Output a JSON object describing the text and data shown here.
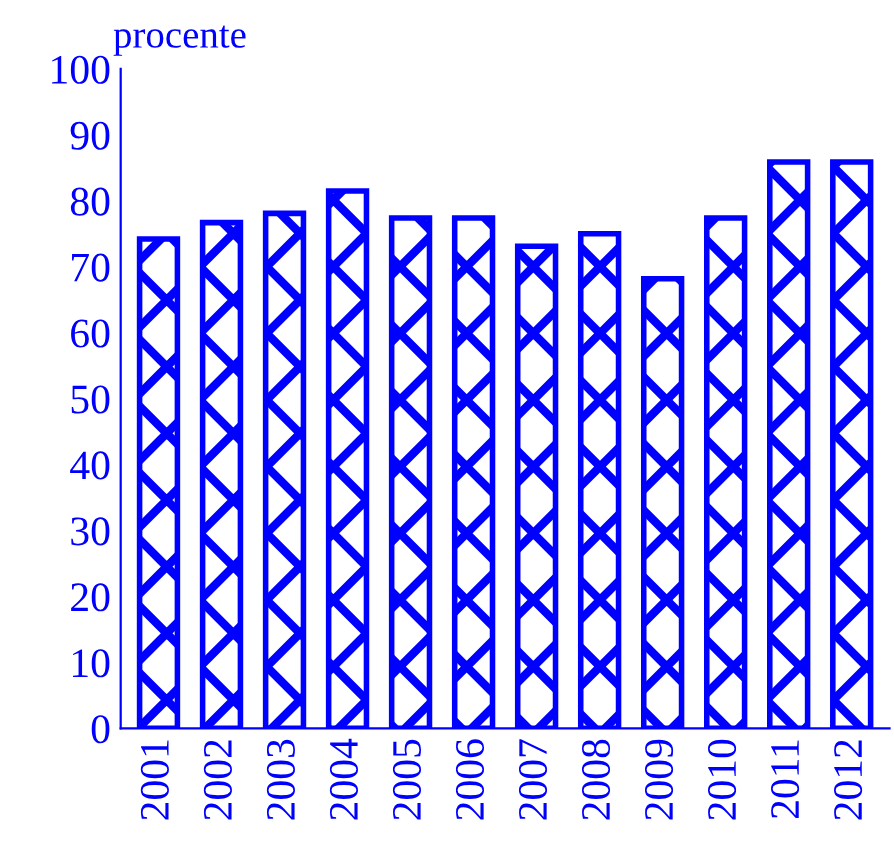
{
  "chart_data": {
    "type": "bar",
    "ylabel": "procente",
    "categories": [
      "2001",
      "2002",
      "2003",
      "2004",
      "2005",
      "2006",
      "2007",
      "2008",
      "2009",
      "2010",
      "2011",
      "2012"
    ],
    "values": [
      74.2,
      76.7,
      78.1,
      81.5,
      77.4,
      77.4,
      73.1,
      75.0,
      68.2,
      77.4,
      85.9,
      85.9
    ],
    "color": "#0000ff",
    "ylim": [
      0,
      100
    ],
    "yticks": [
      0,
      10,
      20,
      30,
      40,
      50,
      60,
      70,
      80,
      90,
      100
    ],
    "grid": false
  }
}
